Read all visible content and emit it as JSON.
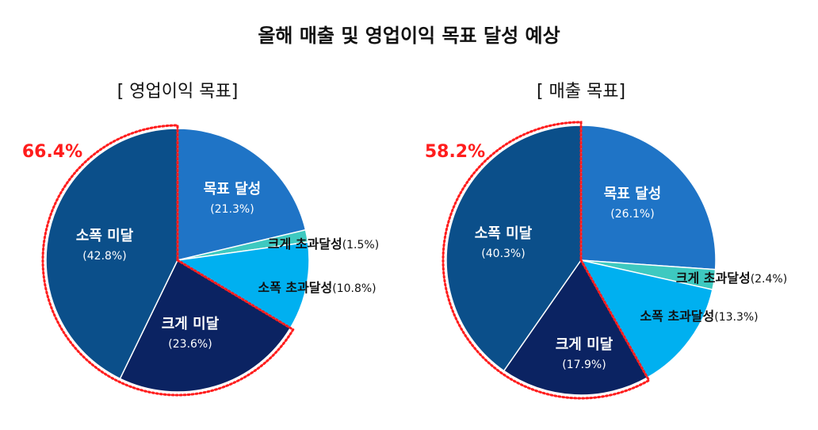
{
  "title": "올해 매출 및 영업이익 목표 달성 예상",
  "chart_data": [
    {
      "type": "pie",
      "title": "[ 영업이익 목표]",
      "highlight_label": "66.4%",
      "highlight_color": "#ff1d1d",
      "slices": [
        {
          "label": "목표 달성",
          "value": 21.3,
          "pct_label": "(21.3%)",
          "color": "#1f74c6"
        },
        {
          "label": "크게 초과달성",
          "value": 1.5,
          "pct_label": "(1.5%)",
          "color": "#3ec9c0"
        },
        {
          "label": "소폭 초과달성",
          "value": 10.8,
          "pct_label": "(10.8%)",
          "color": "#00b0f0"
        },
        {
          "label": "크게 미달",
          "value": 23.6,
          "pct_label": "(23.6%)",
          "color": "#0b2362"
        },
        {
          "label": "소폭 미달",
          "value": 42.8,
          "pct_label": "(42.8%)",
          "color": "#0b4f8a"
        }
      ]
    },
    {
      "type": "pie",
      "title": "[ 매출 목표]",
      "highlight_label": "58.2%",
      "highlight_color": "#ff1d1d",
      "slices": [
        {
          "label": "목표 달성",
          "value": 26.1,
          "pct_label": "(26.1%)",
          "color": "#1f74c6"
        },
        {
          "label": "크게 초과달성",
          "value": 2.4,
          "pct_label": "(2.4%)",
          "color": "#3ec9c0"
        },
        {
          "label": "소폭 초과달성",
          "value": 13.3,
          "pct_label": "(13.3%)",
          "color": "#00b0f0"
        },
        {
          "label": "크게 미달",
          "value": 17.9,
          "pct_label": "(17.9%)",
          "color": "#0b2362"
        },
        {
          "label": "소폭 미달",
          "value": 40.3,
          "pct_label": "(40.3%)",
          "color": "#0b4f8a"
        }
      ]
    }
  ]
}
